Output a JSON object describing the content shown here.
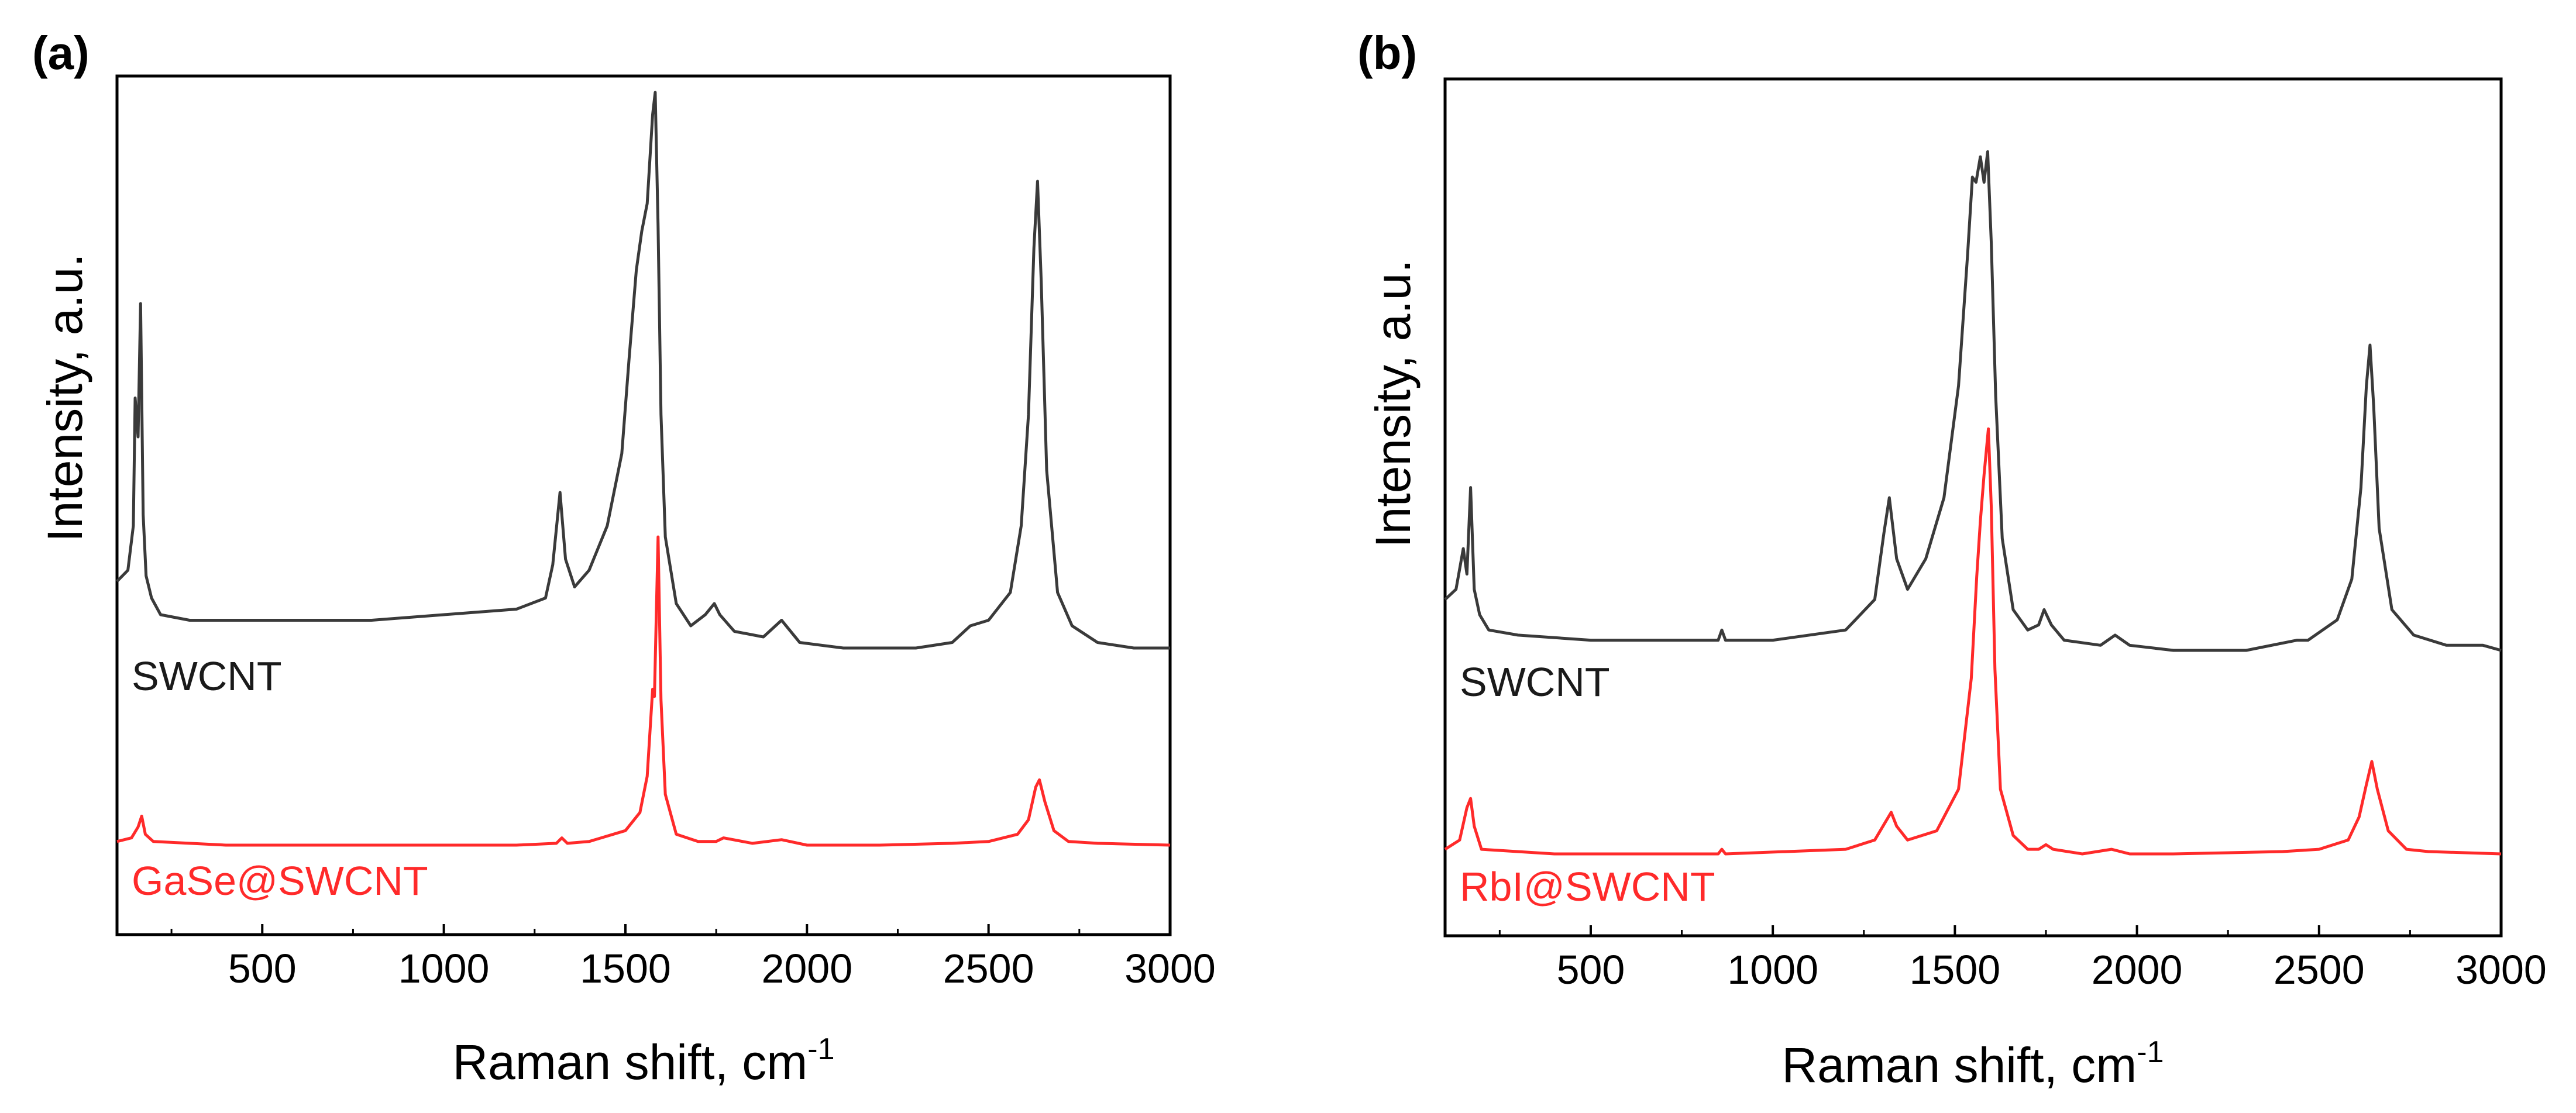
{
  "panels": [
    {
      "letter": "(a)",
      "xlabel": "Raman shift, cm",
      "xlabel_sup": "-1",
      "ylabel": "Intensity, a.u.",
      "labels": [
        "SWCNT",
        "GaSe@SWCNT"
      ]
    },
    {
      "letter": "(b)",
      "xlabel": "Raman shift, cm",
      "xlabel_sup": "-1",
      "ylabel": "Intensity, a.u.",
      "labels": [
        "SWCNT",
        "RbI@SWCNT"
      ]
    }
  ],
  "chart_data": [
    {
      "type": "line",
      "panel": "(a)",
      "xlabel": "Raman shift, cm-1",
      "ylabel": "Intensity, a.u.",
      "xlim": [
        100,
        3000
      ],
      "xticks": [
        500,
        1000,
        1500,
        2000,
        2500,
        3000
      ],
      "yticks_labeled": false,
      "series": [
        {
          "name": "SWCNT",
          "color": "#3a3a3a",
          "x": [
            100,
            130,
            145,
            150,
            158,
            165,
            172,
            180,
            195,
            220,
            300,
            500,
            800,
            1000,
            1200,
            1280,
            1300,
            1320,
            1335,
            1360,
            1400,
            1450,
            1490,
            1510,
            1530,
            1545,
            1560,
            1575,
            1582,
            1590,
            1598,
            1610,
            1640,
            1680,
            1720,
            1745,
            1760,
            1800,
            1880,
            1930,
            1980,
            2100,
            2300,
            2400,
            2450,
            2500,
            2560,
            2590,
            2610,
            2625,
            2635,
            2645,
            2660,
            2690,
            2730,
            2800,
            2900,
            3000
          ],
          "y": [
            0.12,
            0.14,
            0.22,
            0.45,
            0.38,
            0.62,
            0.24,
            0.13,
            0.09,
            0.06,
            0.05,
            0.05,
            0.05,
            0.06,
            0.07,
            0.09,
            0.15,
            0.28,
            0.16,
            0.11,
            0.14,
            0.22,
            0.35,
            0.52,
            0.68,
            0.75,
            0.8,
            0.96,
            1.0,
            0.76,
            0.42,
            0.2,
            0.08,
            0.04,
            0.06,
            0.08,
            0.06,
            0.03,
            0.02,
            0.05,
            0.01,
            0.0,
            0.0,
            0.01,
            0.04,
            0.05,
            0.1,
            0.22,
            0.42,
            0.72,
            0.84,
            0.66,
            0.32,
            0.1,
            0.04,
            0.01,
            0.0,
            0.0
          ]
        },
        {
          "name": "GaSe@SWCNT",
          "color": "#ff2a2a",
          "x": [
            100,
            140,
            158,
            168,
            178,
            200,
            400,
            800,
            1200,
            1310,
            1325,
            1340,
            1400,
            1500,
            1540,
            1560,
            1570,
            1575,
            1580,
            1590,
            1598,
            1610,
            1640,
            1700,
            1750,
            1770,
            1850,
            1930,
            2000,
            2200,
            2400,
            2500,
            2580,
            2610,
            2630,
            2640,
            2655,
            2680,
            2720,
            2800,
            3000
          ],
          "y": [
            0.01,
            0.02,
            0.05,
            0.08,
            0.03,
            0.01,
            0.0,
            0.0,
            0.0,
            0.005,
            0.02,
            0.005,
            0.01,
            0.04,
            0.09,
            0.19,
            0.35,
            0.43,
            0.41,
            0.85,
            0.4,
            0.14,
            0.03,
            0.01,
            0.01,
            0.02,
            0.005,
            0.015,
            0.0,
            0.0,
            0.005,
            0.01,
            0.03,
            0.07,
            0.16,
            0.18,
            0.12,
            0.04,
            0.01,
            0.005,
            0.0
          ]
        }
      ]
    },
    {
      "type": "line",
      "panel": "(b)",
      "xlabel": "Raman shift, cm-1",
      "ylabel": "Intensity, a.u.",
      "xlim": [
        100,
        3000
      ],
      "xticks": [
        500,
        1000,
        1500,
        2000,
        2500,
        3000
      ],
      "yticks_labeled": false,
      "series": [
        {
          "name": "SWCNT",
          "color": "#3a3a3a",
          "x": [
            100,
            130,
            150,
            160,
            170,
            180,
            195,
            220,
            300,
            500,
            800,
            850,
            860,
            870,
            1000,
            1200,
            1280,
            1305,
            1320,
            1340,
            1370,
            1420,
            1470,
            1510,
            1535,
            1548,
            1558,
            1570,
            1580,
            1590,
            1600,
            1612,
            1630,
            1660,
            1700,
            1730,
            1745,
            1765,
            1800,
            1900,
            1940,
            1980,
            2100,
            2300,
            2440,
            2470,
            2550,
            2590,
            2615,
            2630,
            2640,
            2650,
            2665,
            2700,
            2760,
            2850,
            2950,
            3000
          ],
          "y": [
            0.1,
            0.12,
            0.2,
            0.15,
            0.32,
            0.12,
            0.07,
            0.04,
            0.03,
            0.02,
            0.02,
            0.02,
            0.04,
            0.02,
            0.02,
            0.04,
            0.1,
            0.23,
            0.3,
            0.18,
            0.12,
            0.18,
            0.3,
            0.52,
            0.78,
            0.93,
            0.92,
            0.97,
            0.92,
            0.98,
            0.8,
            0.5,
            0.22,
            0.08,
            0.04,
            0.05,
            0.08,
            0.05,
            0.02,
            0.01,
            0.03,
            0.01,
            0.0,
            0.0,
            0.02,
            0.02,
            0.06,
            0.14,
            0.32,
            0.52,
            0.6,
            0.48,
            0.24,
            0.08,
            0.03,
            0.01,
            0.01,
            0.0
          ]
        },
        {
          "name": "RbI@SWCNT",
          "color": "#ff2a2a",
          "x": [
            100,
            140,
            160,
            170,
            180,
            200,
            400,
            800,
            850,
            860,
            870,
            1200,
            1280,
            1310,
            1325,
            1340,
            1370,
            1450,
            1510,
            1545,
            1560,
            1570,
            1580,
            1592,
            1600,
            1610,
            1625,
            1660,
            1700,
            1730,
            1750,
            1770,
            1850,
            1930,
            1980,
            2100,
            2400,
            2500,
            2580,
            2610,
            2630,
            2645,
            2660,
            2690,
            2740,
            2800,
            3000
          ],
          "y": [
            0.01,
            0.03,
            0.1,
            0.12,
            0.06,
            0.01,
            0.0,
            0.0,
            0.0,
            0.01,
            0.0,
            0.01,
            0.03,
            0.07,
            0.09,
            0.06,
            0.03,
            0.05,
            0.14,
            0.38,
            0.6,
            0.72,
            0.82,
            0.92,
            0.75,
            0.4,
            0.14,
            0.04,
            0.01,
            0.01,
            0.02,
            0.01,
            0.0,
            0.01,
            0.0,
            0.0,
            0.005,
            0.01,
            0.03,
            0.08,
            0.15,
            0.2,
            0.14,
            0.05,
            0.01,
            0.005,
            0.0
          ]
        }
      ]
    }
  ]
}
